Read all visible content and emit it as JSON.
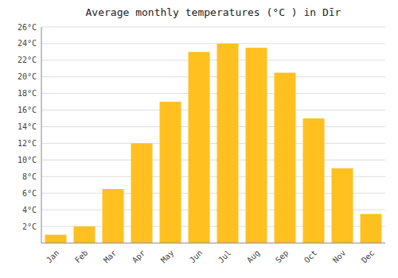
{
  "chart_data": {
    "type": "bar",
    "title": "Average monthly temperatures (°C ) in Dīr",
    "categories": [
      "Jan",
      "Feb",
      "Mar",
      "Apr",
      "May",
      "Jun",
      "Jul",
      "Aug",
      "Sep",
      "Oct",
      "Nov",
      "Dec"
    ],
    "values": [
      1,
      2,
      6.5,
      12,
      17,
      23,
      24,
      23.5,
      20.5,
      15,
      9,
      3.5
    ],
    "color": "#FFC020",
    "ylim": [
      0,
      26
    ],
    "yticks": [
      {
        "value": 2,
        "label": "2°C"
      },
      {
        "value": 4,
        "label": "4°C"
      },
      {
        "value": 6,
        "label": "6°C"
      },
      {
        "value": 8,
        "label": "8°C"
      },
      {
        "value": 10,
        "label": "10°C"
      },
      {
        "value": 12,
        "label": "12°C"
      },
      {
        "value": 14,
        "label": "14°C"
      },
      {
        "value": 16,
        "label": "16°C"
      },
      {
        "value": 18,
        "label": "18°C"
      },
      {
        "value": 20,
        "label": "20°C"
      },
      {
        "value": 22,
        "label": "22°C"
      },
      {
        "value": 24,
        "label": "24°C"
      },
      {
        "value": 26,
        "label": "26°C"
      }
    ],
    "grid": true
  }
}
